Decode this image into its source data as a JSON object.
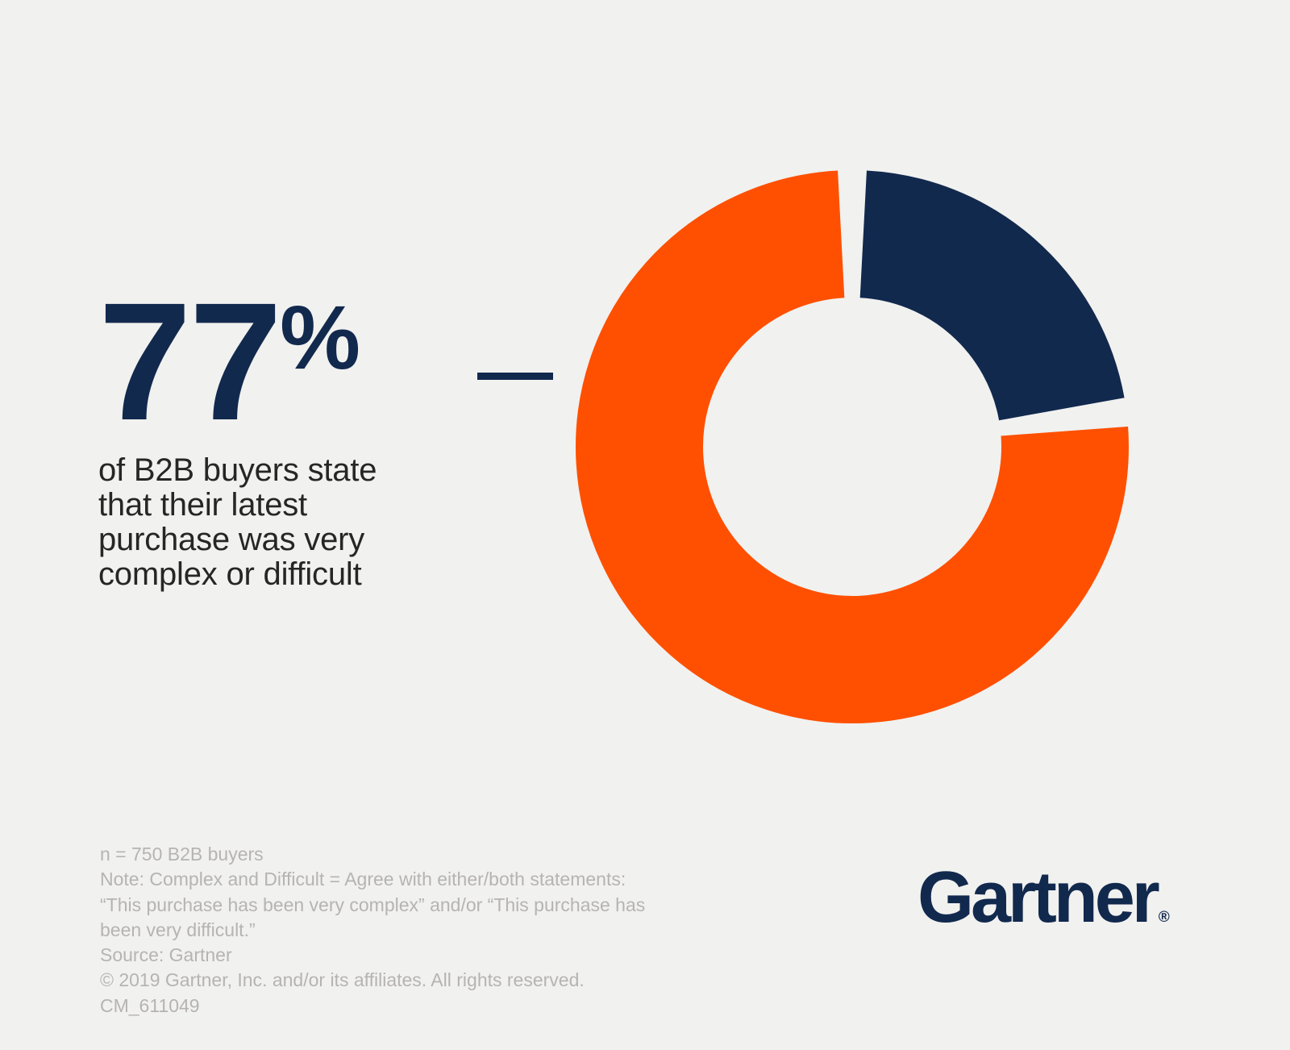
{
  "page": {
    "background_color": "#f1f1ef"
  },
  "colors": {
    "navy": "#12294e",
    "orange": "#fe5000",
    "body_text": "#262626",
    "footnote_gray": "#b6b4b1"
  },
  "stat": {
    "value": "77",
    "percent_sign": "%",
    "description": "of B2B buyers state\nthat their latest\npurchase was very\ncomplex or difficult"
  },
  "chart_data": {
    "type": "pie",
    "style": "donut",
    "title": "",
    "start": "top",
    "direction": "clockwise",
    "gap_degrees": 6,
    "labels_shown": false,
    "legend": "none",
    "highlighted_value": 77,
    "segments": [
      {
        "value": 23,
        "color": "#12294e"
      },
      {
        "value": 77,
        "color": "#fe5000"
      }
    ]
  },
  "footnotes": {
    "lines": [
      "n = 750 B2B buyers",
      "Note: Complex and Difficult = Agree with either/both statements: “This purchase has been very complex” and/or “This purchase has been very difficult.”",
      "Source: Gartner",
      "© 2019 Gartner, Inc. and/or its affiliates. All rights reserved. CM_611049"
    ]
  },
  "logo": {
    "text": "Gartner",
    "registered": "®"
  }
}
